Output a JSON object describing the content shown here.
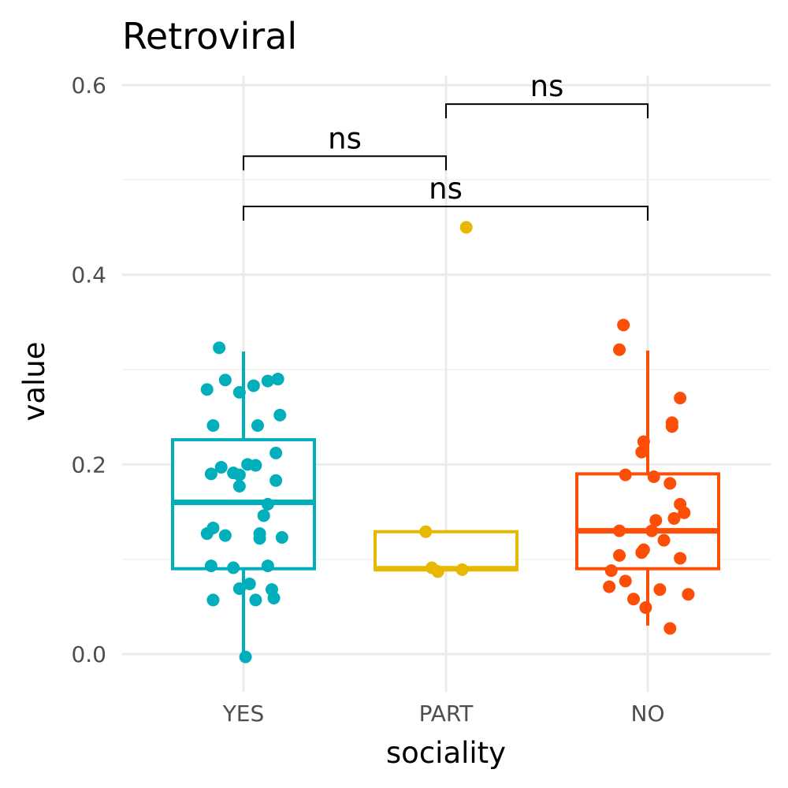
{
  "chart_data": {
    "type": "box",
    "title": "Retroviral",
    "xlabel": "sociality",
    "ylabel": "value",
    "categories": [
      "YES",
      "PART",
      "NO"
    ],
    "ylim": [
      -0.03,
      0.6
    ],
    "yticks": [
      0.0,
      0.2,
      0.4,
      0.6
    ],
    "ytick_labels": [
      "0.0",
      "0.2",
      "0.4",
      "0.6"
    ],
    "grid": true,
    "legend": "none",
    "colors": {
      "YES": "#00AFBB",
      "PART": "#E7B800",
      "NO": "#FC4E07"
    },
    "boxes": [
      {
        "category": "YES",
        "q1": 0.09,
        "median": 0.16,
        "q3": 0.226,
        "whisker_low": -0.003,
        "whisker_high": 0.319
      },
      {
        "category": "PART",
        "q1": 0.089,
        "median": 0.09,
        "q3": 0.129,
        "whisker_low": 0.089,
        "whisker_high": 0.129
      },
      {
        "category": "NO",
        "q1": 0.09,
        "median": 0.13,
        "q3": 0.19,
        "whisker_low": 0.03,
        "whisker_high": 0.32
      }
    ],
    "points": [
      {
        "category": "YES",
        "xj": -0.12,
        "y": 0.323
      },
      {
        "category": "YES",
        "xj": -0.09,
        "y": 0.289
      },
      {
        "category": "YES",
        "xj": -0.18,
        "y": 0.279
      },
      {
        "category": "YES",
        "xj": -0.02,
        "y": 0.276
      },
      {
        "category": "YES",
        "xj": 0.05,
        "y": 0.283
      },
      {
        "category": "YES",
        "xj": 0.12,
        "y": 0.288
      },
      {
        "category": "YES",
        "xj": 0.17,
        "y": 0.29
      },
      {
        "category": "YES",
        "xj": 0.18,
        "y": 0.252
      },
      {
        "category": "YES",
        "xj": -0.15,
        "y": 0.241
      },
      {
        "category": "YES",
        "xj": 0.07,
        "y": 0.241
      },
      {
        "category": "YES",
        "xj": 0.16,
        "y": 0.212
      },
      {
        "category": "YES",
        "xj": 0.02,
        "y": 0.2
      },
      {
        "category": "YES",
        "xj": 0.06,
        "y": 0.199
      },
      {
        "category": "YES",
        "xj": -0.11,
        "y": 0.197
      },
      {
        "category": "YES",
        "xj": -0.16,
        "y": 0.19
      },
      {
        "category": "YES",
        "xj": -0.05,
        "y": 0.191
      },
      {
        "category": "YES",
        "xj": -0.02,
        "y": 0.189
      },
      {
        "category": "YES",
        "xj": 0.16,
        "y": 0.183
      },
      {
        "category": "YES",
        "xj": -0.02,
        "y": 0.177
      },
      {
        "category": "YES",
        "xj": 0.12,
        "y": 0.158
      },
      {
        "category": "YES",
        "xj": 0.1,
        "y": 0.146
      },
      {
        "category": "YES",
        "xj": -0.15,
        "y": 0.133
      },
      {
        "category": "YES",
        "xj": -0.18,
        "y": 0.127
      },
      {
        "category": "YES",
        "xj": -0.09,
        "y": 0.125
      },
      {
        "category": "YES",
        "xj": 0.08,
        "y": 0.127
      },
      {
        "category": "YES",
        "xj": 0.08,
        "y": 0.122
      },
      {
        "category": "YES",
        "xj": 0.19,
        "y": 0.123
      },
      {
        "category": "YES",
        "xj": -0.16,
        "y": 0.093
      },
      {
        "category": "YES",
        "xj": -0.05,
        "y": 0.091
      },
      {
        "category": "YES",
        "xj": 0.12,
        "y": 0.093
      },
      {
        "category": "YES",
        "xj": 0.03,
        "y": 0.074
      },
      {
        "category": "YES",
        "xj": -0.02,
        "y": 0.069
      },
      {
        "category": "YES",
        "xj": 0.14,
        "y": 0.068
      },
      {
        "category": "YES",
        "xj": -0.15,
        "y": 0.057
      },
      {
        "category": "YES",
        "xj": 0.06,
        "y": 0.057
      },
      {
        "category": "YES",
        "xj": 0.15,
        "y": 0.059
      },
      {
        "category": "YES",
        "xj": 0.01,
        "y": -0.003
      },
      {
        "category": "PART",
        "xj": 0.1,
        "y": 0.45
      },
      {
        "category": "PART",
        "xj": -0.1,
        "y": 0.129
      },
      {
        "category": "PART",
        "xj": -0.07,
        "y": 0.091
      },
      {
        "category": "PART",
        "xj": -0.04,
        "y": 0.087
      },
      {
        "category": "PART",
        "xj": 0.08,
        "y": 0.089
      },
      {
        "category": "NO",
        "xj": -0.12,
        "y": 0.347
      },
      {
        "category": "NO",
        "xj": -0.14,
        "y": 0.321
      },
      {
        "category": "NO",
        "xj": 0.16,
        "y": 0.27
      },
      {
        "category": "NO",
        "xj": 0.12,
        "y": 0.244
      },
      {
        "category": "NO",
        "xj": 0.12,
        "y": 0.24
      },
      {
        "category": "NO",
        "xj": -0.02,
        "y": 0.224
      },
      {
        "category": "NO",
        "xj": -0.03,
        "y": 0.213
      },
      {
        "category": "NO",
        "xj": -0.11,
        "y": 0.189
      },
      {
        "category": "NO",
        "xj": 0.03,
        "y": 0.187
      },
      {
        "category": "NO",
        "xj": 0.11,
        "y": 0.18
      },
      {
        "category": "NO",
        "xj": 0.16,
        "y": 0.158
      },
      {
        "category": "NO",
        "xj": 0.18,
        "y": 0.149
      },
      {
        "category": "NO",
        "xj": 0.13,
        "y": 0.143
      },
      {
        "category": "NO",
        "xj": 0.04,
        "y": 0.141
      },
      {
        "category": "NO",
        "xj": -0.14,
        "y": 0.13
      },
      {
        "category": "NO",
        "xj": 0.02,
        "y": 0.13
      },
      {
        "category": "NO",
        "xj": 0.08,
        "y": 0.12
      },
      {
        "category": "NO",
        "xj": -0.02,
        "y": 0.11
      },
      {
        "category": "NO",
        "xj": -0.03,
        "y": 0.107
      },
      {
        "category": "NO",
        "xj": -0.14,
        "y": 0.104
      },
      {
        "category": "NO",
        "xj": 0.16,
        "y": 0.101
      },
      {
        "category": "NO",
        "xj": -0.18,
        "y": 0.088
      },
      {
        "category": "NO",
        "xj": -0.11,
        "y": 0.077
      },
      {
        "category": "NO",
        "xj": -0.19,
        "y": 0.071
      },
      {
        "category": "NO",
        "xj": 0.06,
        "y": 0.068
      },
      {
        "category": "NO",
        "xj": 0.2,
        "y": 0.063
      },
      {
        "category": "NO",
        "xj": -0.07,
        "y": 0.058
      },
      {
        "category": "NO",
        "xj": -0.01,
        "y": 0.049
      },
      {
        "category": "NO",
        "xj": 0.11,
        "y": 0.027
      }
    ],
    "comparisons": [
      {
        "from": "YES",
        "to": "PART",
        "label": "ns",
        "y": 0.525
      },
      {
        "from": "PART",
        "to": "NO",
        "label": "ns",
        "y": 0.58
      },
      {
        "from": "YES",
        "to": "NO",
        "label": "ns",
        "y": 0.472
      }
    ]
  }
}
